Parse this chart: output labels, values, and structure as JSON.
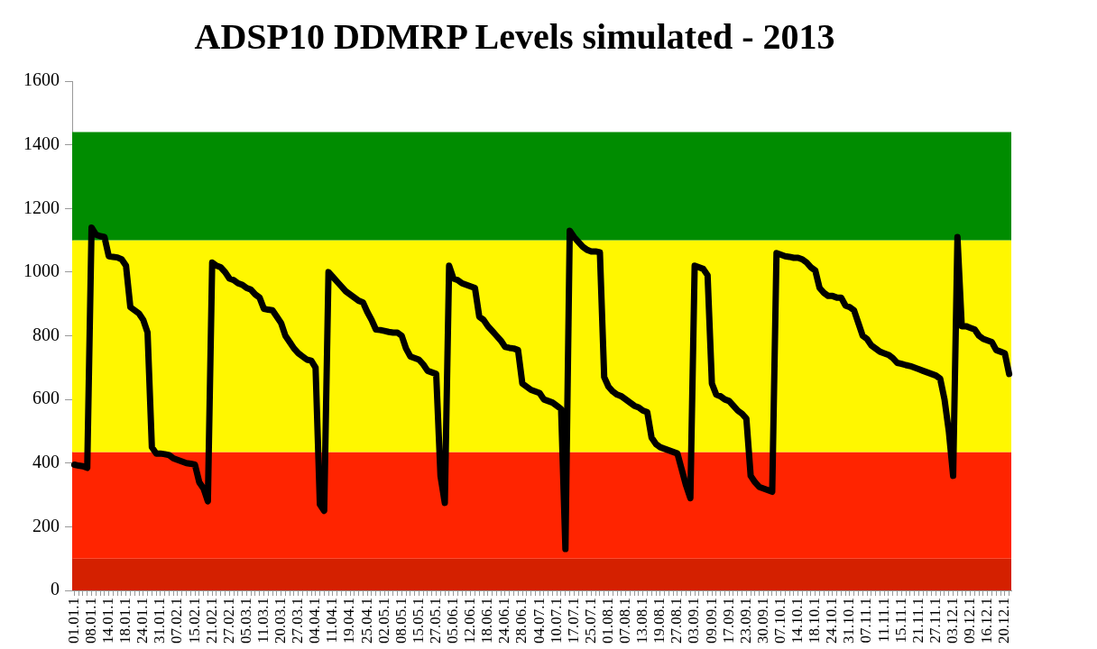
{
  "chart_data": {
    "type": "line",
    "title": "ADSP10 DDMRP Levels simulated - 2013",
    "categories": [
      "01.01.1",
      null,
      null,
      null,
      "08.01.1",
      null,
      null,
      null,
      "14.01.1",
      null,
      null,
      null,
      "18.01.1",
      null,
      null,
      null,
      "24.01.1",
      null,
      null,
      null,
      "31.01.1",
      null,
      null,
      null,
      "07.02.1",
      null,
      null,
      null,
      "15.02.1",
      null,
      null,
      null,
      "21.02.1",
      null,
      null,
      null,
      "27.02.1",
      null,
      null,
      null,
      "05.03.1",
      null,
      null,
      null,
      "11.03.1",
      null,
      null,
      null,
      "20.03.1",
      null,
      null,
      null,
      "27.03.1",
      null,
      null,
      null,
      "04.04.1",
      null,
      null,
      null,
      "11.04.1",
      null,
      null,
      null,
      "19.04.1",
      null,
      null,
      null,
      "25.04.1",
      null,
      null,
      null,
      "02.05.1",
      null,
      null,
      null,
      "08.05.1",
      null,
      null,
      null,
      "15.05.1",
      null,
      null,
      null,
      "27.05.1",
      null,
      null,
      null,
      "05.06.1",
      null,
      null,
      null,
      "12.06.1",
      null,
      null,
      null,
      "18.06.1",
      null,
      null,
      null,
      "24.06.1",
      null,
      null,
      null,
      "28.06.1",
      null,
      null,
      null,
      "04.07.1",
      null,
      null,
      null,
      "10.07.1",
      null,
      null,
      null,
      "17.07.1",
      null,
      null,
      null,
      "25.07.1",
      null,
      null,
      null,
      "01.08.1",
      null,
      null,
      null,
      "07.08.1",
      null,
      null,
      null,
      "13.08.1",
      null,
      null,
      null,
      "19.08.1",
      null,
      null,
      null,
      "27.08.1",
      null,
      null,
      null,
      "03.09.1",
      null,
      null,
      null,
      "09.09.1",
      null,
      null,
      null,
      "17.09.1",
      null,
      null,
      null,
      "23.09.1",
      null,
      null,
      null,
      "30.09.1",
      null,
      null,
      null,
      "07.10.1",
      null,
      null,
      null,
      "14.10.1",
      null,
      null,
      null,
      "18.10.1",
      null,
      null,
      null,
      "24.10.1",
      null,
      null,
      null,
      "31.10.1",
      null,
      null,
      null,
      "07.11.1",
      null,
      null,
      null,
      "11.11.1",
      null,
      null,
      null,
      "15.11.1",
      null,
      null,
      null,
      "21.11.1",
      null,
      null,
      null,
      "27.11.1",
      null,
      null,
      null,
      "03.12.1",
      null,
      null,
      null,
      "09.12.1",
      null,
      null,
      null,
      "16.12.1",
      null,
      null,
      null,
      "20.12.1",
      null
    ],
    "series": [
      {
        "color": "#000000",
        "values": [
          395,
          392,
          390,
          385,
          1140,
          1118,
          1113,
          1110,
          1050,
          1048,
          1046,
          1040,
          1020,
          890,
          880,
          870,
          850,
          810,
          450,
          430,
          430,
          428,
          425,
          415,
          410,
          405,
          400,
          398,
          395,
          340,
          320,
          280,
          1030,
          1020,
          1015,
          1000,
          980,
          975,
          965,
          960,
          950,
          945,
          930,
          920,
          885,
          882,
          880,
          860,
          840,
          800,
          780,
          760,
          745,
          735,
          725,
          722,
          700,
          270,
          250,
          1000,
          985,
          970,
          955,
          940,
          930,
          920,
          910,
          905,
          875,
          850,
          820,
          818,
          815,
          812,
          810,
          810,
          800,
          760,
          735,
          730,
          725,
          710,
          690,
          685,
          680,
          360,
          275,
          1020,
          980,
          975,
          965,
          960,
          955,
          950,
          860,
          850,
          830,
          815,
          800,
          785,
          765,
          762,
          760,
          755,
          650,
          640,
          630,
          625,
          620,
          600,
          595,
          590,
          580,
          570,
          130,
          1130,
          1110,
          1095,
          1080,
          1070,
          1065,
          1065,
          1062,
          670,
          640,
          625,
          615,
          610,
          600,
          590,
          580,
          575,
          565,
          560,
          480,
          460,
          450,
          445,
          440,
          435,
          430,
          380,
          330,
          290,
          1020,
          1015,
          1010,
          990,
          650,
          615,
          610,
          600,
          595,
          580,
          565,
          555,
          540,
          360,
          340,
          325,
          320,
          315,
          310,
          1060,
          1055,
          1050,
          1048,
          1045,
          1045,
          1040,
          1030,
          1015,
          1005,
          950,
          935,
          925,
          925,
          920,
          920,
          895,
          890,
          880,
          840,
          800,
          790,
          770,
          760,
          750,
          745,
          740,
          730,
          715,
          712,
          708,
          705,
          700,
          695,
          690,
          685,
          680,
          675,
          665,
          600,
          500,
          360,
          1110,
          830,
          830,
          825,
          820,
          800,
          790,
          785,
          780,
          755,
          750,
          745,
          680
        ]
      }
    ],
    "ylim": [
      0,
      1600
    ],
    "yticks": [
      0,
      200,
      400,
      600,
      800,
      1000,
      1200,
      1400,
      1600
    ],
    "bands": [
      {
        "axis": "y",
        "from": 0,
        "to": 100,
        "color": "#d42000"
      },
      {
        "axis": "y",
        "from": 100,
        "to": 435,
        "color": "#ff2400"
      },
      {
        "axis": "y",
        "from": 435,
        "to": 1100,
        "color": "#fff700"
      },
      {
        "axis": "y",
        "from": 1100,
        "to": 1440,
        "color": "#008c00"
      }
    ],
    "grid": false,
    "legend": false,
    "marker": "none",
    "line_style": "solid"
  }
}
